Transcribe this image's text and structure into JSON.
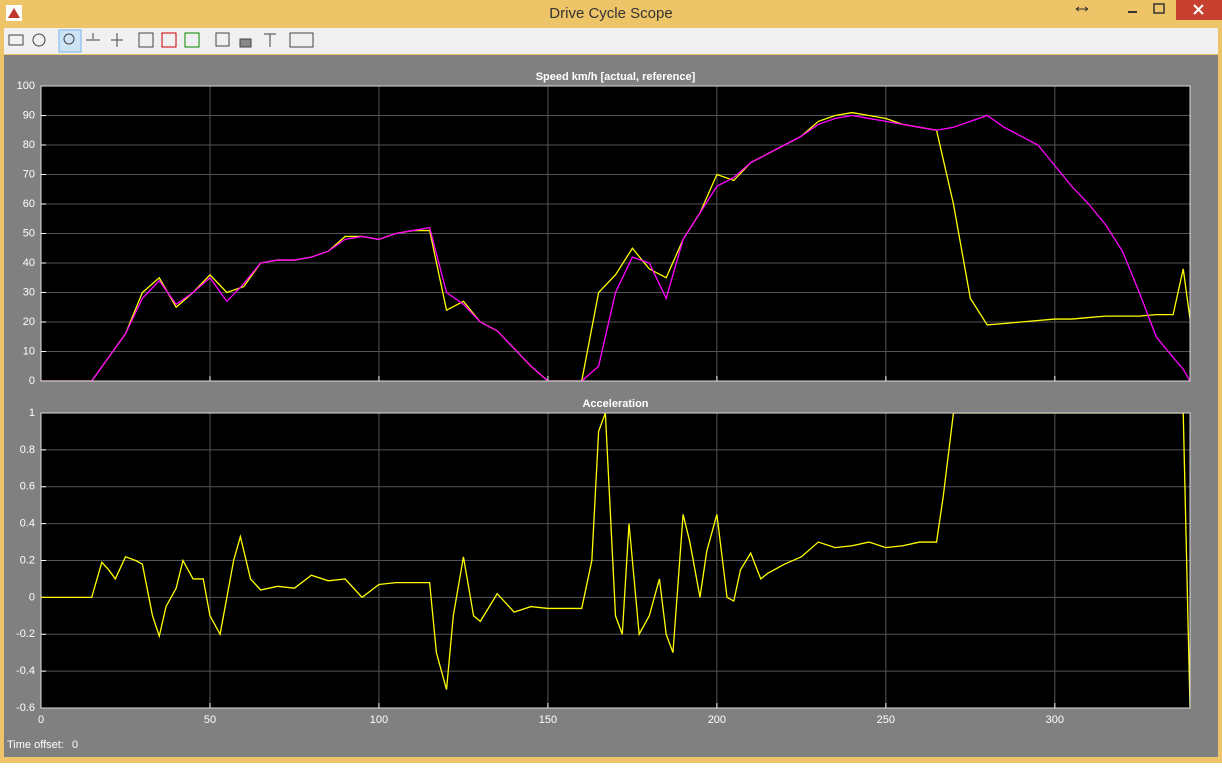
{
  "window": {
    "title": "Drive Cycle Scope"
  },
  "status": {
    "label": "Time offset:",
    "value": 0
  },
  "chart_data": [
    {
      "type": "line",
      "title": "Speed km/h [actual, reference]",
      "x": [
        0,
        5,
        10,
        15,
        20,
        25,
        30,
        35,
        40,
        45,
        50,
        55,
        60,
        65,
        70,
        75,
        80,
        85,
        90,
        95,
        100,
        105,
        110,
        115,
        120,
        125,
        130,
        135,
        140,
        145,
        150,
        155,
        160,
        165,
        170,
        175,
        180,
        185,
        190,
        195,
        200,
        205,
        210,
        215,
        220,
        225,
        230,
        235,
        240,
        245,
        250,
        255,
        260,
        265,
        270,
        275,
        280,
        285,
        290,
        295,
        300,
        305,
        310,
        315,
        320,
        325,
        330,
        335,
        338,
        340
      ],
      "series": [
        {
          "name": "actual",
          "color": "#ffff00",
          "values": [
            0,
            0,
            0,
            0,
            8,
            16,
            30,
            35,
            25,
            30,
            36,
            30,
            32,
            40,
            41,
            41,
            42,
            44,
            49,
            49,
            48,
            50,
            51,
            51,
            24,
            27,
            20,
            17,
            11,
            5,
            0,
            0,
            0,
            30,
            36,
            45,
            38,
            35,
            48,
            57,
            70,
            68,
            74,
            77,
            80,
            83,
            88,
            90,
            91,
            90,
            89,
            87,
            86,
            85,
            60,
            28,
            19,
            19.5,
            20,
            20.5,
            21,
            21,
            21.5,
            22,
            22,
            22,
            22.5,
            22.5,
            38,
            21
          ]
        },
        {
          "name": "reference",
          "color": "#ff00ff",
          "values": [
            0,
            0,
            0,
            0,
            8,
            16,
            28,
            34,
            26,
            30,
            35,
            27,
            33,
            40,
            41,
            41,
            42,
            44,
            48,
            49,
            48,
            50,
            51,
            52,
            30,
            26,
            20,
            17,
            11,
            5,
            0,
            0,
            0,
            5,
            30,
            42,
            40,
            28,
            48,
            57,
            66,
            69,
            74,
            77,
            80,
            83,
            87,
            89,
            90,
            89,
            88,
            87,
            86,
            85,
            86,
            88,
            90,
            86,
            83,
            80,
            73,
            66,
            60,
            53,
            44,
            30,
            15,
            8,
            4,
            0
          ]
        }
      ],
      "xlim": [
        0,
        340
      ],
      "ylim": [
        0,
        100
      ],
      "yticks": [
        0,
        10,
        20,
        30,
        40,
        50,
        60,
        70,
        80,
        90,
        100
      ],
      "grid": true
    },
    {
      "type": "line",
      "title": "Acceleration",
      "x": [
        0,
        15,
        18,
        20,
        22,
        25,
        28,
        30,
        33,
        35,
        37,
        40,
        42,
        45,
        48,
        50,
        53,
        55,
        57,
        59,
        62,
        65,
        70,
        75,
        80,
        85,
        90,
        95,
        100,
        105,
        110,
        115,
        117,
        120,
        122,
        125,
        128,
        130,
        135,
        140,
        145,
        150,
        160,
        163,
        165,
        167,
        170,
        172,
        174,
        177,
        180,
        183,
        185,
        187,
        190,
        192,
        195,
        197,
        200,
        203,
        205,
        207,
        210,
        213,
        215,
        220,
        225,
        230,
        235,
        240,
        245,
        250,
        255,
        260,
        265,
        267,
        270,
        280,
        290,
        300,
        310,
        320,
        330,
        335,
        338,
        340
      ],
      "series": [
        {
          "name": "acceleration",
          "color": "#ffff00",
          "values": [
            0,
            0,
            0.19,
            0.15,
            0.1,
            0.22,
            0.2,
            0.18,
            -0.1,
            -0.21,
            -0.05,
            0.05,
            0.2,
            0.1,
            0.1,
            -0.1,
            -0.2,
            0,
            0.2,
            0.33,
            0.1,
            0.04,
            0.06,
            0.05,
            0.12,
            0.09,
            0.1,
            0,
            0.07,
            0.08,
            0.08,
            0.08,
            -0.3,
            -0.5,
            -0.1,
            0.22,
            -0.1,
            -0.13,
            0.02,
            -0.08,
            -0.05,
            -0.06,
            -0.06,
            0.2,
            0.9,
            1,
            -0.1,
            -0.2,
            0.4,
            -0.2,
            -0.1,
            0.1,
            -0.2,
            -0.3,
            0.45,
            0.3,
            0,
            0.25,
            0.45,
            0,
            -0.02,
            0.15,
            0.24,
            0.1,
            0.13,
            0.18,
            0.22,
            0.3,
            0.27,
            0.28,
            0.3,
            0.27,
            0.28,
            0.3,
            0.3,
            0.55,
            1,
            1,
            1,
            1,
            1,
            1,
            1,
            1,
            1,
            -0.6
          ]
        }
      ],
      "xlim": [
        0,
        340
      ],
      "ylim": [
        -0.6,
        1
      ],
      "xticks": [
        0,
        50,
        100,
        150,
        200,
        250,
        300
      ],
      "yticks": [
        -0.6,
        -0.4,
        -0.2,
        0,
        0.2,
        0.4,
        0.6,
        0.8,
        1
      ],
      "grid": true
    }
  ]
}
